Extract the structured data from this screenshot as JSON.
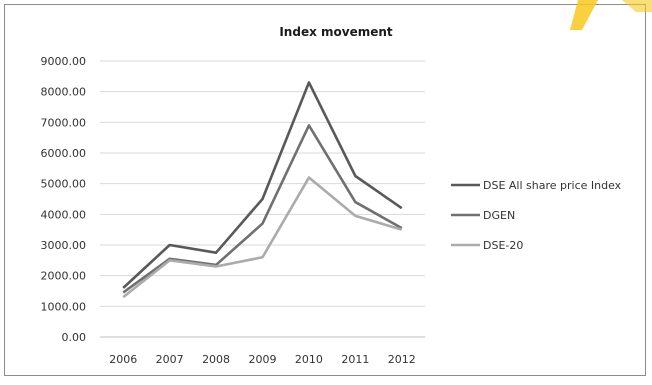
{
  "chart_data": {
    "type": "line",
    "title": "Index movement",
    "xlabel": "",
    "ylabel": "",
    "categories": [
      "2006",
      "2007",
      "2008",
      "2009",
      "2010",
      "2011",
      "2012"
    ],
    "ylim": [
      0,
      9000
    ],
    "yticks": [
      "0.00",
      "1000.00",
      "2000.00",
      "3000.00",
      "4000.00",
      "5000.00",
      "6000.00",
      "7000.00",
      "8000.00",
      "9000.00"
    ],
    "grid": true,
    "legend_position": "right",
    "series": [
      {
        "name": "DSE All share price Index",
        "values": [
          1600,
          3000,
          2750,
          4500,
          8300,
          5250,
          4200
        ],
        "color": "#595959"
      },
      {
        "name": "DGEN",
        "values": [
          1450,
          2550,
          2350,
          3700,
          6900,
          4400,
          3550
        ],
        "color": "#707070"
      },
      {
        "name": "DSE-20",
        "values": [
          1300,
          2500,
          2300,
          2600,
          5200,
          3950,
          3500
        ],
        "color": "#ababab"
      }
    ]
  }
}
